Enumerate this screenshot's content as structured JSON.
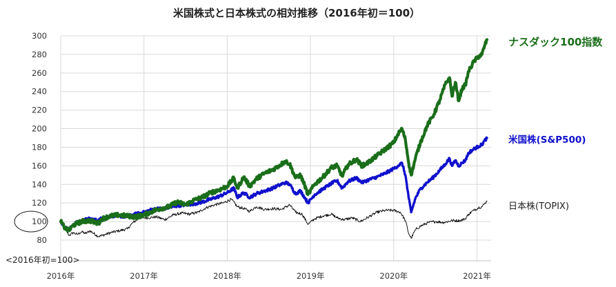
{
  "chart_data": {
    "type": "line",
    "title": "米国株式と日本株式の相対推移（2016年初＝100）",
    "xlabel": "",
    "ylabel": "",
    "x_tick_labels": [
      "2016年",
      "2017年",
      "2018年",
      "2019年",
      "2020年",
      "2021年"
    ],
    "x_range": [
      2016.0,
      2021.17
    ],
    "y_ticks": [
      80,
      100,
      120,
      140,
      160,
      180,
      200,
      220,
      240,
      260,
      280,
      300
    ],
    "ylim": [
      80,
      300
    ],
    "grid": true,
    "base_note": "<2016年初=100>",
    "highlighted_tick": 100,
    "series": [
      {
        "name": "ナスダック100指数",
        "color": "#1a6e1a",
        "label_color": "#1a6e1a",
        "points": [
          [
            2016.0,
            100
          ],
          [
            2016.05,
            93
          ],
          [
            2016.1,
            90
          ],
          [
            2016.15,
            96
          ],
          [
            2016.25,
            100
          ],
          [
            2016.35,
            101
          ],
          [
            2016.45,
            98
          ],
          [
            2016.5,
            103
          ],
          [
            2016.6,
            106
          ],
          [
            2016.7,
            107
          ],
          [
            2016.8,
            106
          ],
          [
            2016.9,
            105
          ],
          [
            2017.0,
            107
          ],
          [
            2017.1,
            111
          ],
          [
            2017.2,
            114
          ],
          [
            2017.3,
            116
          ],
          [
            2017.4,
            121
          ],
          [
            2017.5,
            118
          ],
          [
            2017.6,
            123
          ],
          [
            2017.7,
            126
          ],
          [
            2017.8,
            131
          ],
          [
            2017.9,
            134
          ],
          [
            2018.0,
            138
          ],
          [
            2018.08,
            147
          ],
          [
            2018.12,
            136
          ],
          [
            2018.2,
            148
          ],
          [
            2018.27,
            138
          ],
          [
            2018.35,
            146
          ],
          [
            2018.45,
            152
          ],
          [
            2018.55,
            156
          ],
          [
            2018.62,
            160
          ],
          [
            2018.7,
            165
          ],
          [
            2018.75,
            162
          ],
          [
            2018.82,
            147
          ],
          [
            2018.88,
            150
          ],
          [
            2018.93,
            139
          ],
          [
            2018.97,
            129
          ],
          [
            2019.05,
            140
          ],
          [
            2019.15,
            148
          ],
          [
            2019.25,
            158
          ],
          [
            2019.32,
            160
          ],
          [
            2019.38,
            149
          ],
          [
            2019.45,
            161
          ],
          [
            2019.55,
            167
          ],
          [
            2019.62,
            160
          ],
          [
            2019.7,
            164
          ],
          [
            2019.8,
            171
          ],
          [
            2019.9,
            178
          ],
          [
            2020.0,
            185
          ],
          [
            2020.05,
            194
          ],
          [
            2020.1,
            200
          ],
          [
            2020.14,
            188
          ],
          [
            2020.18,
            163
          ],
          [
            2020.21,
            150
          ],
          [
            2020.26,
            168
          ],
          [
            2020.32,
            185
          ],
          [
            2020.4,
            203
          ],
          [
            2020.48,
            215
          ],
          [
            2020.55,
            230
          ],
          [
            2020.62,
            248
          ],
          [
            2020.67,
            255
          ],
          [
            2020.7,
            235
          ],
          [
            2020.74,
            250
          ],
          [
            2020.78,
            230
          ],
          [
            2020.82,
            243
          ],
          [
            2020.86,
            247
          ],
          [
            2020.9,
            262
          ],
          [
            2020.96,
            272
          ],
          [
            2021.02,
            278
          ],
          [
            2021.06,
            280
          ],
          [
            2021.09,
            289
          ],
          [
            2021.12,
            296
          ]
        ]
      },
      {
        "name": "米国株(S&P500)",
        "color": "#1010cc",
        "label_color": "#1010cc",
        "points": [
          [
            2016.0,
            100
          ],
          [
            2016.05,
            94
          ],
          [
            2016.1,
            91
          ],
          [
            2016.15,
            97
          ],
          [
            2016.25,
            101
          ],
          [
            2016.35,
            103
          ],
          [
            2016.45,
            101
          ],
          [
            2016.5,
            104
          ],
          [
            2016.6,
            106
          ],
          [
            2016.7,
            106
          ],
          [
            2016.8,
            105
          ],
          [
            2016.9,
            108
          ],
          [
            2017.0,
            110
          ],
          [
            2017.1,
            113
          ],
          [
            2017.2,
            114
          ],
          [
            2017.3,
            115
          ],
          [
            2017.4,
            117
          ],
          [
            2017.5,
            118
          ],
          [
            2017.6,
            119
          ],
          [
            2017.7,
            121
          ],
          [
            2017.8,
            124
          ],
          [
            2017.9,
            127
          ],
          [
            2018.0,
            131
          ],
          [
            2018.08,
            136
          ],
          [
            2018.12,
            126
          ],
          [
            2018.2,
            131
          ],
          [
            2018.27,
            126
          ],
          [
            2018.35,
            130
          ],
          [
            2018.45,
            133
          ],
          [
            2018.55,
            136
          ],
          [
            2018.62,
            139
          ],
          [
            2018.7,
            142
          ],
          [
            2018.75,
            140
          ],
          [
            2018.82,
            130
          ],
          [
            2018.88,
            133
          ],
          [
            2018.93,
            126
          ],
          [
            2018.97,
            120
          ],
          [
            2019.05,
            129
          ],
          [
            2019.15,
            135
          ],
          [
            2019.25,
            141
          ],
          [
            2019.32,
            144
          ],
          [
            2019.38,
            136
          ],
          [
            2019.45,
            143
          ],
          [
            2019.55,
            147
          ],
          [
            2019.62,
            142
          ],
          [
            2019.7,
            145
          ],
          [
            2019.8,
            148
          ],
          [
            2019.9,
            152
          ],
          [
            2020.0,
            157
          ],
          [
            2020.05,
            160
          ],
          [
            2020.1,
            163
          ],
          [
            2020.14,
            150
          ],
          [
            2020.18,
            125
          ],
          [
            2020.21,
            110
          ],
          [
            2020.26,
            125
          ],
          [
            2020.32,
            135
          ],
          [
            2020.4,
            142
          ],
          [
            2020.48,
            148
          ],
          [
            2020.55,
            155
          ],
          [
            2020.62,
            162
          ],
          [
            2020.67,
            168
          ],
          [
            2020.7,
            160
          ],
          [
            2020.74,
            166
          ],
          [
            2020.78,
            160
          ],
          [
            2020.82,
            163
          ],
          [
            2020.86,
            166
          ],
          [
            2020.9,
            174
          ],
          [
            2020.96,
            178
          ],
          [
            2021.02,
            181
          ],
          [
            2021.06,
            183
          ],
          [
            2021.09,
            187
          ],
          [
            2021.12,
            190
          ]
        ]
      },
      {
        "name": "日本株(TOPIX)",
        "color": "#111111",
        "label_color": "#222222",
        "points": [
          [
            2016.0,
            98
          ],
          [
            2016.05,
            93
          ],
          [
            2016.1,
            85
          ],
          [
            2016.15,
            88
          ],
          [
            2016.2,
            86
          ],
          [
            2016.25,
            89
          ],
          [
            2016.3,
            87
          ],
          [
            2016.35,
            90
          ],
          [
            2016.45,
            84
          ],
          [
            2016.5,
            85
          ],
          [
            2016.6,
            88
          ],
          [
            2016.7,
            90
          ],
          [
            2016.8,
            92
          ],
          [
            2016.87,
            99
          ],
          [
            2016.95,
            104
          ],
          [
            2017.05,
            104
          ],
          [
            2017.15,
            105
          ],
          [
            2017.25,
            102
          ],
          [
            2017.35,
            107
          ],
          [
            2017.45,
            109
          ],
          [
            2017.55,
            108
          ],
          [
            2017.65,
            110
          ],
          [
            2017.75,
            115
          ],
          [
            2017.85,
            118
          ],
          [
            2017.95,
            120
          ],
          [
            2018.05,
            124
          ],
          [
            2018.12,
            116
          ],
          [
            2018.2,
            114
          ],
          [
            2018.27,
            111
          ],
          [
            2018.35,
            116
          ],
          [
            2018.45,
            113
          ],
          [
            2018.55,
            114
          ],
          [
            2018.65,
            113
          ],
          [
            2018.75,
            118
          ],
          [
            2018.82,
            110
          ],
          [
            2018.9,
            108
          ],
          [
            2018.97,
            97
          ],
          [
            2019.05,
            103
          ],
          [
            2019.15,
            106
          ],
          [
            2019.25,
            108
          ],
          [
            2019.32,
            104
          ],
          [
            2019.4,
            102
          ],
          [
            2019.5,
            104
          ],
          [
            2019.6,
            100
          ],
          [
            2019.7,
            105
          ],
          [
            2019.8,
            110
          ],
          [
            2019.9,
            112
          ],
          [
            2020.0,
            112
          ],
          [
            2020.08,
            110
          ],
          [
            2020.14,
            101
          ],
          [
            2020.18,
            87
          ],
          [
            2020.21,
            82
          ],
          [
            2020.26,
            91
          ],
          [
            2020.32,
            95
          ],
          [
            2020.42,
            99
          ],
          [
            2020.5,
            100
          ],
          [
            2020.6,
            99
          ],
          [
            2020.7,
            101
          ],
          [
            2020.8,
            101
          ],
          [
            2020.86,
            103
          ],
          [
            2020.9,
            108
          ],
          [
            2020.96,
            112
          ],
          [
            2021.02,
            115
          ],
          [
            2021.06,
            116
          ],
          [
            2021.09,
            119
          ],
          [
            2021.12,
            122
          ]
        ]
      }
    ]
  }
}
